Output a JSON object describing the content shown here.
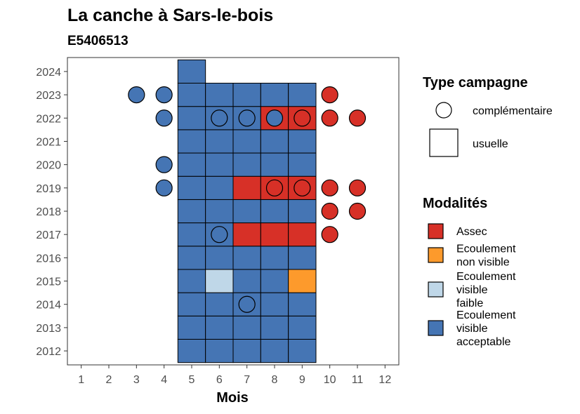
{
  "chart_data": {
    "type": "heatmap",
    "title": "La canche à Sars-le-bois",
    "subtitle": "E5406513",
    "xlabel": "Mois",
    "ylabel": "",
    "x_ticks": [
      1,
      2,
      3,
      4,
      5,
      6,
      7,
      8,
      9,
      10,
      11,
      12
    ],
    "y_ticks": [
      2012,
      2013,
      2014,
      2015,
      2016,
      2017,
      2018,
      2019,
      2020,
      2021,
      2022,
      2023,
      2024
    ],
    "xlim": [
      0.5,
      12.5
    ],
    "ylim": [
      2011.4,
      2024.6
    ],
    "colors": {
      "Assec": "#d73027",
      "Ecoulement non visible": "#fd9a2c",
      "Ecoulement visible faible": "#bfd7e8",
      "Ecoulement visible acceptable": "#4575b4"
    },
    "legend_type": {
      "title": "Type campagne",
      "entries": [
        {
          "label": "complémentaire",
          "shape": "circle"
        },
        {
          "label": "usuelle",
          "shape": "square"
        }
      ]
    },
    "legend_modalites": {
      "title": "Modalités",
      "entries": [
        {
          "key": "Assec",
          "lines": [
            "Assec"
          ]
        },
        {
          "key": "Ecoulement non visible",
          "lines": [
            "Ecoulement",
            "non visible"
          ]
        },
        {
          "key": "Ecoulement visible faible",
          "lines": [
            "Ecoulement",
            "visible",
            "faible"
          ]
        },
        {
          "key": "Ecoulement visible acceptable",
          "lines": [
            "Ecoulement",
            "visible",
            "acceptable"
          ]
        }
      ]
    },
    "usuelle": [
      {
        "year": 2012,
        "m": 5,
        "v": "Ecoulement visible acceptable"
      },
      {
        "year": 2012,
        "m": 6,
        "v": "Ecoulement visible acceptable"
      },
      {
        "year": 2012,
        "m": 7,
        "v": "Ecoulement visible acceptable"
      },
      {
        "year": 2012,
        "m": 8,
        "v": "Ecoulement visible acceptable"
      },
      {
        "year": 2012,
        "m": 9,
        "v": "Ecoulement visible acceptable"
      },
      {
        "year": 2013,
        "m": 5,
        "v": "Ecoulement visible acceptable"
      },
      {
        "year": 2013,
        "m": 6,
        "v": "Ecoulement visible acceptable"
      },
      {
        "year": 2013,
        "m": 7,
        "v": "Ecoulement visible acceptable"
      },
      {
        "year": 2013,
        "m": 8,
        "v": "Ecoulement visible acceptable"
      },
      {
        "year": 2013,
        "m": 9,
        "v": "Ecoulement visible acceptable"
      },
      {
        "year": 2014,
        "m": 5,
        "v": "Ecoulement visible acceptable"
      },
      {
        "year": 2014,
        "m": 6,
        "v": "Ecoulement visible acceptable"
      },
      {
        "year": 2014,
        "m": 7,
        "v": "Ecoulement visible acceptable"
      },
      {
        "year": 2014,
        "m": 8,
        "v": "Ecoulement visible acceptable"
      },
      {
        "year": 2014,
        "m": 9,
        "v": "Ecoulement visible acceptable"
      },
      {
        "year": 2015,
        "m": 5,
        "v": "Ecoulement visible acceptable"
      },
      {
        "year": 2015,
        "m": 6,
        "v": "Ecoulement visible faible"
      },
      {
        "year": 2015,
        "m": 7,
        "v": "Ecoulement visible acceptable"
      },
      {
        "year": 2015,
        "m": 8,
        "v": "Ecoulement visible acceptable"
      },
      {
        "year": 2015,
        "m": 9,
        "v": "Ecoulement non visible"
      },
      {
        "year": 2016,
        "m": 5,
        "v": "Ecoulement visible acceptable"
      },
      {
        "year": 2016,
        "m": 6,
        "v": "Ecoulement visible acceptable"
      },
      {
        "year": 2016,
        "m": 7,
        "v": "Ecoulement visible acceptable"
      },
      {
        "year": 2016,
        "m": 8,
        "v": "Ecoulement visible acceptable"
      },
      {
        "year": 2016,
        "m": 9,
        "v": "Ecoulement visible acceptable"
      },
      {
        "year": 2017,
        "m": 5,
        "v": "Ecoulement visible acceptable"
      },
      {
        "year": 2017,
        "m": 6,
        "v": "Ecoulement visible acceptable"
      },
      {
        "year": 2017,
        "m": 7,
        "v": "Assec"
      },
      {
        "year": 2017,
        "m": 8,
        "v": "Assec"
      },
      {
        "year": 2017,
        "m": 9,
        "v": "Assec"
      },
      {
        "year": 2018,
        "m": 5,
        "v": "Ecoulement visible acceptable"
      },
      {
        "year": 2018,
        "m": 6,
        "v": "Ecoulement visible acceptable"
      },
      {
        "year": 2018,
        "m": 7,
        "v": "Ecoulement visible acceptable"
      },
      {
        "year": 2018,
        "m": 8,
        "v": "Ecoulement visible acceptable"
      },
      {
        "year": 2018,
        "m": 9,
        "v": "Ecoulement visible acceptable"
      },
      {
        "year": 2019,
        "m": 5,
        "v": "Ecoulement visible acceptable"
      },
      {
        "year": 2019,
        "m": 6,
        "v": "Ecoulement visible acceptable"
      },
      {
        "year": 2019,
        "m": 7,
        "v": "Assec"
      },
      {
        "year": 2019,
        "m": 8,
        "v": "Assec"
      },
      {
        "year": 2019,
        "m": 9,
        "v": "Assec"
      },
      {
        "year": 2020,
        "m": 5,
        "v": "Ecoulement visible acceptable"
      },
      {
        "year": 2020,
        "m": 6,
        "v": "Ecoulement visible acceptable"
      },
      {
        "year": 2020,
        "m": 7,
        "v": "Ecoulement visible acceptable"
      },
      {
        "year": 2020,
        "m": 8,
        "v": "Ecoulement visible acceptable"
      },
      {
        "year": 2020,
        "m": 9,
        "v": "Ecoulement visible acceptable"
      },
      {
        "year": 2021,
        "m": 5,
        "v": "Ecoulement visible acceptable"
      },
      {
        "year": 2021,
        "m": 6,
        "v": "Ecoulement visible acceptable"
      },
      {
        "year": 2021,
        "m": 7,
        "v": "Ecoulement visible acceptable"
      },
      {
        "year": 2021,
        "m": 8,
        "v": "Ecoulement visible acceptable"
      },
      {
        "year": 2021,
        "m": 9,
        "v": "Ecoulement visible acceptable"
      },
      {
        "year": 2022,
        "m": 5,
        "v": "Ecoulement visible acceptable"
      },
      {
        "year": 2022,
        "m": 6,
        "v": "Ecoulement visible acceptable"
      },
      {
        "year": 2022,
        "m": 7,
        "v": "Ecoulement visible acceptable"
      },
      {
        "year": 2022,
        "m": 8,
        "v": "Assec"
      },
      {
        "year": 2022,
        "m": 9,
        "v": "Assec"
      },
      {
        "year": 2023,
        "m": 5,
        "v": "Ecoulement visible acceptable"
      },
      {
        "year": 2023,
        "m": 6,
        "v": "Ecoulement visible acceptable"
      },
      {
        "year": 2023,
        "m": 7,
        "v": "Ecoulement visible acceptable"
      },
      {
        "year": 2023,
        "m": 8,
        "v": "Ecoulement visible acceptable"
      },
      {
        "year": 2023,
        "m": 9,
        "v": "Ecoulement visible acceptable"
      },
      {
        "year": 2024,
        "m": 5,
        "v": "Ecoulement visible acceptable"
      }
    ],
    "complementaire": [
      {
        "year": 2014,
        "m": 7,
        "v": "Ecoulement visible acceptable"
      },
      {
        "year": 2017,
        "m": 6,
        "v": "Ecoulement visible acceptable"
      },
      {
        "year": 2017,
        "m": 10,
        "v": "Assec"
      },
      {
        "year": 2018,
        "m": 10,
        "v": "Assec"
      },
      {
        "year": 2018,
        "m": 11,
        "v": "Assec"
      },
      {
        "year": 2019,
        "m": 4,
        "v": "Ecoulement visible acceptable"
      },
      {
        "year": 2019,
        "m": 8,
        "v": "Assec"
      },
      {
        "year": 2019,
        "m": 9,
        "v": "Assec"
      },
      {
        "year": 2019,
        "m": 10,
        "v": "Assec"
      },
      {
        "year": 2019,
        "m": 11,
        "v": "Assec"
      },
      {
        "year": 2020,
        "m": 4,
        "v": "Ecoulement visible acceptable"
      },
      {
        "year": 2022,
        "m": 4,
        "v": "Ecoulement visible acceptable"
      },
      {
        "year": 2022,
        "m": 6,
        "v": "Ecoulement visible acceptable"
      },
      {
        "year": 2022,
        "m": 7,
        "v": "Ecoulement visible acceptable"
      },
      {
        "year": 2022,
        "m": 8,
        "v": "Ecoulement visible acceptable"
      },
      {
        "year": 2022,
        "m": 9,
        "v": "Assec"
      },
      {
        "year": 2022,
        "m": 10,
        "v": "Assec"
      },
      {
        "year": 2022,
        "m": 11,
        "v": "Assec"
      },
      {
        "year": 2023,
        "m": 3,
        "v": "Ecoulement visible acceptable"
      },
      {
        "year": 2023,
        "m": 4,
        "v": "Ecoulement visible acceptable"
      },
      {
        "year": 2023,
        "m": 10,
        "v": "Assec"
      }
    ]
  }
}
